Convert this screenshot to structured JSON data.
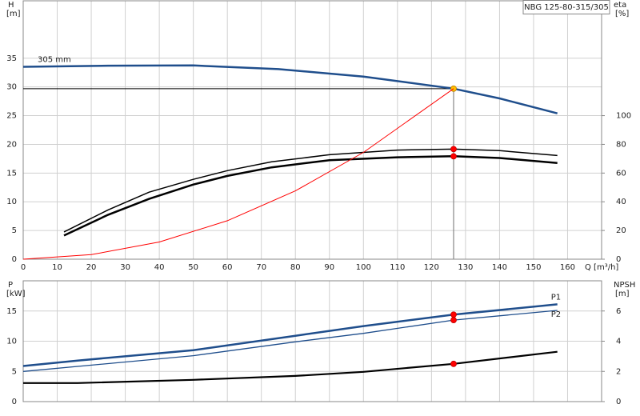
{
  "chart_data": [
    {
      "type": "line",
      "title": "NBG 125-80-315/305",
      "ylabel": "H",
      "yunit": "[m]",
      "y2label": "eta",
      "y2unit": "[%]",
      "xlabel": "Q [m³/h]",
      "xlim": [
        0,
        170
      ],
      "xticks": [
        0,
        10,
        20,
        30,
        40,
        50,
        60,
        70,
        80,
        90,
        100,
        110,
        120,
        130,
        140,
        150,
        160
      ],
      "ylim": [
        0,
        45
      ],
      "yticks": [
        0,
        5,
        10,
        15,
        20,
        25,
        30,
        35
      ],
      "y2lim": [
        0,
        180
      ],
      "y2ticks": [
        0,
        20,
        40,
        60,
        80,
        100
      ],
      "grid": true,
      "duty_x": 126.5,
      "series": [
        {
          "name": "305 mm",
          "color": "#1f4e8c",
          "width": 2.5,
          "marker_color": "#ffc000",
          "x": [
            0,
            25,
            50,
            75,
            100,
            126.5,
            140,
            157
          ],
          "values": [
            33.5,
            33.7,
            33.75,
            33.1,
            31.8,
            29.7,
            28,
            25.4
          ]
        },
        {
          "color": "#000000",
          "width": 1.5,
          "axis": "y2",
          "marker_color": "#ff0000",
          "x": [
            12,
            25,
            37,
            50,
            60,
            73,
            90,
            110,
            126.5,
            140,
            157
          ],
          "values": [
            19,
            34.4,
            46.7,
            55.6,
            61.7,
            67.8,
            72.8,
            76,
            76.7,
            75.6,
            72.2
          ]
        },
        {
          "color": "#000000",
          "width": 2.5,
          "axis": "y2",
          "marker_color": "#ff0000",
          "x": [
            12,
            25,
            37,
            50,
            60,
            73,
            90,
            110,
            126.5,
            140,
            157
          ],
          "values": [
            16.5,
            31,
            42,
            52,
            58,
            64,
            69,
            71,
            71.7,
            70.5,
            67
          ]
        },
        {
          "color": "#ff0000",
          "width": 1,
          "x": [
            0,
            20,
            40,
            60,
            80,
            100,
            126.5
          ],
          "values": [
            0,
            0.8,
            3,
            6.7,
            11.9,
            18.6,
            29.7
          ]
        }
      ]
    },
    {
      "type": "line",
      "ylabel": "P",
      "yunit": "[kW]",
      "y2label": "NPSH",
      "y2unit": "[m]",
      "xlim": [
        0,
        170
      ],
      "xticks": [
        0,
        10,
        20,
        30,
        40,
        50,
        60,
        70,
        80,
        90,
        100,
        110,
        120,
        130,
        140,
        150,
        160
      ],
      "ylim": [
        0,
        20
      ],
      "yticks": [
        0,
        5,
        10,
        15
      ],
      "y2lim": [
        0,
        8
      ],
      "y2ticks": [
        0,
        2,
        4,
        6
      ],
      "grid": true,
      "duty_x": 126.5,
      "series": [
        {
          "name": "P1",
          "color": "#1f4e8c",
          "width": 2.5,
          "marker_color": "#ff0000",
          "x": [
            0,
            16,
            50,
            80,
            100,
            126.5,
            157
          ],
          "values": [
            5.9,
            6.8,
            8.5,
            10.9,
            12.5,
            14.4,
            16.1
          ]
        },
        {
          "name": "P2",
          "color": "#1f4e8c",
          "width": 1.3,
          "marker_color": "#ff0000",
          "x": [
            0,
            50,
            80,
            100,
            126.5,
            157
          ],
          "values": [
            5,
            7.6,
            9.9,
            11.3,
            13.5,
            15.1
          ]
        },
        {
          "color": "#000000",
          "width": 2.2,
          "axis": "y2",
          "marker_color": "#ff0000",
          "x": [
            0,
            16,
            50,
            80,
            100,
            126.5,
            157
          ],
          "values": [
            1.23,
            1.23,
            1.44,
            1.7,
            1.97,
            2.5,
            3.3
          ]
        }
      ]
    }
  ]
}
